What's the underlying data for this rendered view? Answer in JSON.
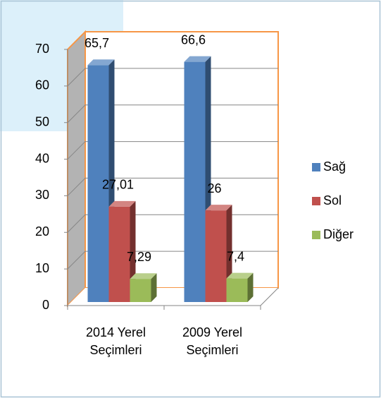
{
  "chart_data": {
    "type": "bar3d",
    "categories": [
      "2014 Yerel Seçimleri",
      "2009 Yerel Seçimleri"
    ],
    "series": [
      {
        "name": "Sağ",
        "color": "#4f81bd",
        "values": [
          65.7,
          66.6
        ],
        "value_labels": [
          "65,7",
          "66,6"
        ]
      },
      {
        "name": "Sol",
        "color": "#c0504d",
        "values": [
          27.01,
          26
        ],
        "value_labels": [
          "27,01",
          "26"
        ]
      },
      {
        "name": "Diğer",
        "color": "#9bbb59",
        "values": [
          7.29,
          7.4
        ],
        "value_labels": [
          "7,29",
          "7,4"
        ]
      }
    ],
    "ylim": [
      0,
      70
    ],
    "yticks": [
      0,
      10,
      20,
      30,
      40,
      50,
      60,
      70
    ],
    "grid": true,
    "legend": "right"
  }
}
